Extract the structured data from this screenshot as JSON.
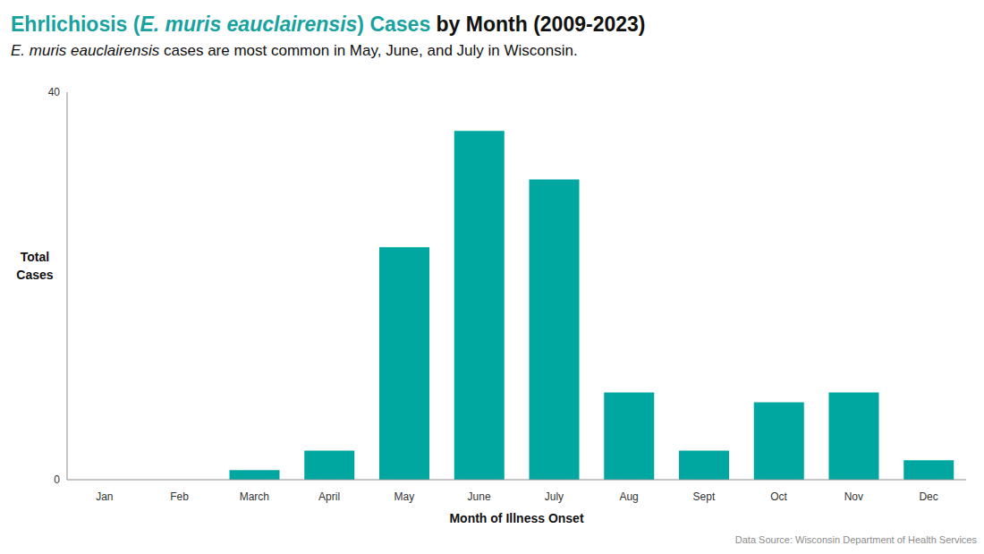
{
  "chart_data": {
    "type": "bar",
    "title": [
      "Ehrlichiosis (",
      "E. muris eauclairensis",
      ") Cases",
      " by Month (2009-2023)"
    ],
    "subtitle": [
      "E. muris eauclairensis",
      " cases are most common in May, June, and July in Wisconsin."
    ],
    "xlabel": "Month of Illness Onset",
    "ylabel": "Total Cases",
    "annotations": [
      "Data Source: Wisconsin Department of Health Services"
    ],
    "categories": [
      "Jan",
      "Feb",
      "March",
      "April",
      "May",
      "June",
      "July",
      "Aug",
      "Sept",
      "Oct",
      "Nov",
      "Dec"
    ],
    "values": [
      0,
      0,
      1,
      3,
      24,
      36,
      31,
      9,
      3,
      8,
      9,
      2
    ],
    "color": "#00a6a0",
    "ylim": [
      0,
      40
    ],
    "yticks": [
      0,
      40
    ],
    "grid": false
  }
}
